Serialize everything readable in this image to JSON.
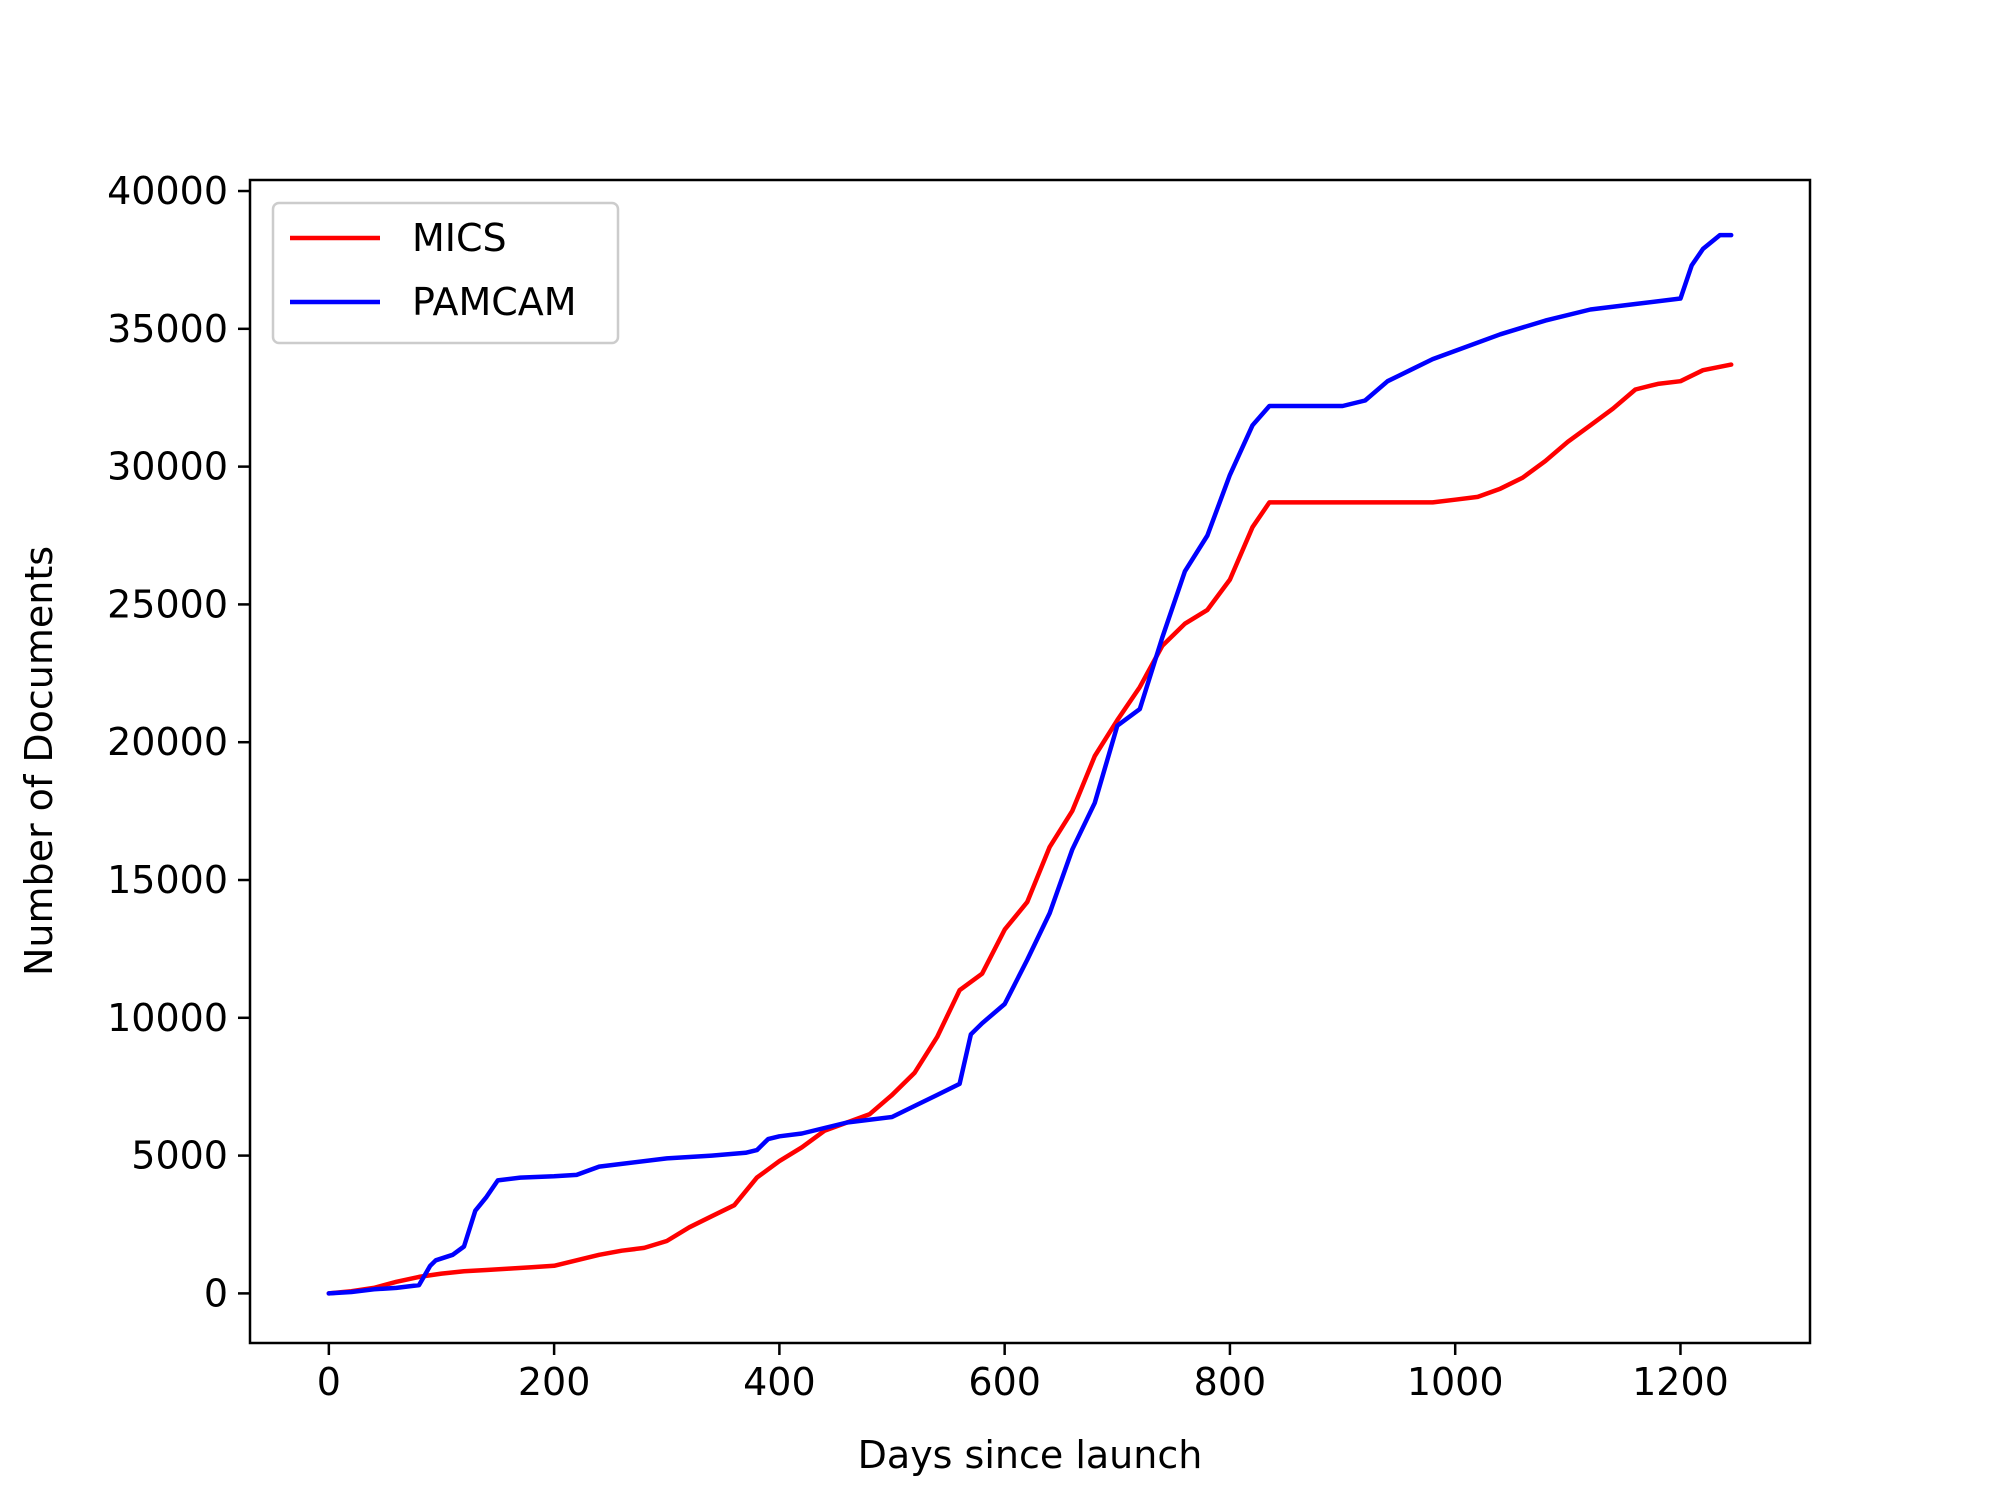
{
  "chart_data": {
    "type": "line",
    "title": "",
    "xlabel": "Days since launch",
    "ylabel": "Number of Documents",
    "xlim": [
      -70,
      1315
    ],
    "ylim": [
      -1800,
      40400
    ],
    "xticks": [
      0,
      200,
      400,
      600,
      800,
      1000,
      1200
    ],
    "yticks": [
      0,
      5000,
      10000,
      15000,
      20000,
      25000,
      30000,
      35000,
      40000
    ],
    "grid": false,
    "legend_position": "upper-left",
    "series": [
      {
        "name": "MICS",
        "color": "#ff0000",
        "x": [
          0,
          20,
          40,
          60,
          80,
          100,
          120,
          140,
          160,
          180,
          200,
          220,
          240,
          260,
          280,
          300,
          320,
          340,
          360,
          380,
          400,
          420,
          440,
          460,
          480,
          500,
          520,
          540,
          560,
          580,
          600,
          620,
          640,
          660,
          680,
          700,
          720,
          740,
          760,
          780,
          800,
          820,
          835,
          900,
          980,
          1000,
          1020,
          1040,
          1060,
          1080,
          1100,
          1120,
          1140,
          1160,
          1180,
          1200,
          1220,
          1245
        ],
        "y": [
          0,
          80,
          200,
          420,
          600,
          720,
          800,
          850,
          900,
          950,
          1000,
          1200,
          1400,
          1550,
          1650,
          1900,
          2400,
          2800,
          3200,
          4200,
          4800,
          5300,
          5900,
          6200,
          6500,
          7200,
          8000,
          9300,
          11000,
          11600,
          13200,
          14200,
          16200,
          17500,
          19500,
          20800,
          22000,
          23500,
          24300,
          24800,
          25900,
          27800,
          28700,
          28700,
          28700,
          28800,
          28900,
          29200,
          29600,
          30200,
          30900,
          31500,
          32100,
          32800,
          33000,
          33100,
          33500,
          33700
        ]
      },
      {
        "name": "PAMCAM",
        "color": "#0000ff",
        "x": [
          0,
          20,
          40,
          60,
          80,
          90,
          95,
          110,
          120,
          130,
          140,
          150,
          170,
          200,
          220,
          240,
          260,
          300,
          340,
          370,
          380,
          390,
          400,
          420,
          460,
          500,
          520,
          540,
          560,
          570,
          580,
          600,
          620,
          640,
          660,
          680,
          700,
          720,
          740,
          760,
          780,
          800,
          820,
          835,
          850,
          900,
          920,
          940,
          960,
          980,
          1000,
          1040,
          1080,
          1120,
          1160,
          1200,
          1210,
          1220,
          1235,
          1245
        ],
        "y": [
          0,
          50,
          150,
          200,
          300,
          1000,
          1200,
          1400,
          1700,
          3000,
          3500,
          4100,
          4200,
          4250,
          4300,
          4600,
          4700,
          4900,
          5000,
          5100,
          5200,
          5600,
          5700,
          5800,
          6200,
          6400,
          6800,
          7200,
          7600,
          9400,
          9800,
          10500,
          12100,
          13800,
          16100,
          17800,
          20600,
          21200,
          23800,
          26200,
          27500,
          29700,
          31500,
          32200,
          32200,
          32200,
          32400,
          33100,
          33500,
          33900,
          34200,
          34800,
          35300,
          35700,
          35900,
          36100,
          37300,
          37900,
          38400,
          38400
        ]
      }
    ]
  }
}
